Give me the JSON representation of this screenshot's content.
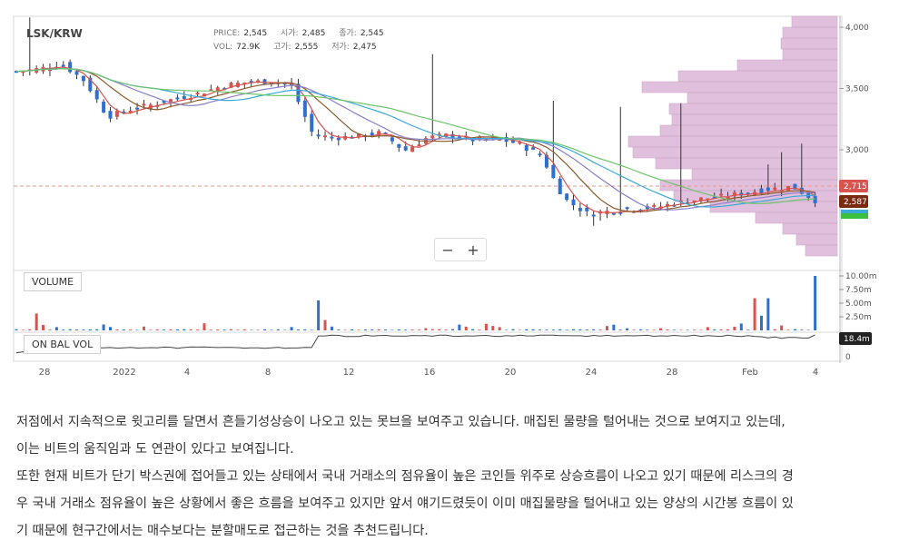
{
  "chart": {
    "symbol": "LSK/KRW",
    "ohlc": {
      "price_label": "PRICE:",
      "price": "2,545",
      "open_label": "시가:",
      "open": "2,485",
      "close_label": "종가:",
      "close": "2,545",
      "vol_label": "VOL:",
      "vol": "72.9K",
      "high_label": "고가:",
      "high": "2,555",
      "low_label": "저가:",
      "low": "2,475"
    },
    "price_ticks": [
      "4,000",
      "3,500",
      "3,000"
    ],
    "price_tags": {
      "current": "2,715",
      "last": "2,587"
    },
    "volume_label": "VOLUME",
    "volume_ticks": [
      "10.00m",
      "7.50m",
      "5.00m",
      "2.50m"
    ],
    "obv_label": "ON BAL VOL",
    "obv_tag": "18.4m",
    "obv_zero": "0",
    "x_ticks": [
      "28",
      "2022",
      "4",
      "8",
      "12",
      "16",
      "20",
      "24",
      "28",
      "Feb",
      "4"
    ],
    "zoom": {
      "minus": "−",
      "plus": "+"
    },
    "colors": {
      "up": "#d9534f",
      "down": "#2f6fce",
      "profile": "#dcb6d8",
      "ma1": "#d9534f",
      "ma2": "#8b5a2b",
      "ma3": "#8a7fc9",
      "ma4": "#3ba9d8",
      "ma5": "#6cc46c"
    }
  },
  "chart_data": {
    "type": "candlestick",
    "title": "LSK/KRW",
    "x_ticks": [
      "28",
      "2022",
      "4",
      "8",
      "12",
      "16",
      "20",
      "24",
      "28",
      "Feb",
      "4"
    ],
    "ylim": [
      2350,
      4100
    ],
    "close_series_approx": [
      3640,
      3660,
      3700,
      3560,
      3270,
      3330,
      3370,
      3420,
      3460,
      3520,
      3550,
      3560,
      3540,
      3120,
      3100,
      3110,
      3140,
      2990,
      3100,
      3120,
      3080,
      3090,
      3050,
      2950,
      2600,
      2480,
      2500,
      2520,
      2530,
      2570,
      2600,
      2620,
      2650,
      2680,
      2700,
      2587
    ],
    "volume_peaks_millions": [
      3.1,
      1.2,
      5.5,
      2.0,
      1.5,
      1.0,
      3.9,
      6.2,
      5.9,
      5.9,
      10.0
    ],
    "obv_last": "18.4m"
  },
  "article": {
    "paragraphs": [
      "저점에서 지속적으로 윗고리를 달면서 흔들기성상승이 나오고 있는 못브을 보여주고 있습니다. 매집된 물량을 털어내는 것으로 보여지고 있는데,",
      "이는 비트의 움직임과 도 연관이 있다고 보여집니다.",
      "또한 현재 비트가 단기 박스권에 접어들고 있는 상태에서 국내 거래소의 점유율이 높은 코인들 위주로 상승흐름이 나오고 있기 때문에 리스크의 경",
      "우 국내 거래소 점유율이 높은 상황에서 좋은 흐름을 보여주고 있지만 앞서 얘기드렸듯이 이미 매집물량을 털어내고 있는 양상의 시간봉 흐름이 있",
      "기 때문에 현구간에서는 매수보다는 분할매도로 접근하는 것을 추천드립니다."
    ]
  }
}
